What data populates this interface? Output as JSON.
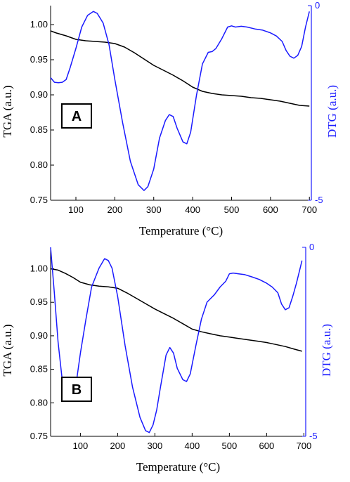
{
  "chart_data": [
    {
      "type": "line",
      "panel_label": "A",
      "xlabel": "Temperature (°C)",
      "ylabel_left": "TGA (a.u.)",
      "ylabel_right": "DTG (a.u.)",
      "xlim": [
        35,
        705
      ],
      "ylim_left": [
        0.75,
        1.027
      ],
      "ylim_right": [
        -5,
        0
      ],
      "xticks": [
        "100",
        "200",
        "300",
        "400",
        "500",
        "600",
        "700"
      ],
      "yticks_left": [
        "0.75",
        "0.80",
        "0.85",
        "0.90",
        "0.95",
        "1.00"
      ],
      "yticks_right": [
        "-5",
        "0"
      ],
      "colors": {
        "tga": "#000000",
        "dtg": "#1a1aff"
      },
      "series": [
        {
          "axis": "left",
          "x": [
            35,
            50,
            75,
            100,
            125,
            150,
            175,
            200,
            225,
            250,
            275,
            300,
            325,
            350,
            375,
            400,
            425,
            450,
            475,
            500,
            525,
            550,
            575,
            600,
            625,
            650,
            675,
            700
          ],
          "values": [
            0.991,
            0.988,
            0.984,
            0.979,
            0.977,
            0.976,
            0.975,
            0.973,
            0.968,
            0.96,
            0.951,
            0.942,
            0.935,
            0.928,
            0.92,
            0.911,
            0.905,
            0.902,
            0.9,
            0.899,
            0.898,
            0.896,
            0.895,
            0.893,
            0.891,
            0.888,
            0.885,
            0.884
          ]
        },
        {
          "axis": "right",
          "x": [
            35,
            45,
            55,
            65,
            75,
            85,
            100,
            115,
            130,
            145,
            155,
            170,
            185,
            200,
            220,
            240,
            260,
            275,
            285,
            300,
            315,
            330,
            340,
            350,
            360,
            375,
            385,
            395,
            410,
            425,
            440,
            450,
            460,
            475,
            490,
            500,
            510,
            525,
            540,
            560,
            580,
            600,
            615,
            630,
            640,
            650,
            660,
            670,
            680,
            690,
            700
          ],
          "values": [
            -1.85,
            -1.97,
            -1.98,
            -1.97,
            -1.9,
            -1.6,
            -1.1,
            -0.55,
            -0.25,
            -0.15,
            -0.2,
            -0.45,
            -1.0,
            -1.9,
            -3.0,
            -4.0,
            -4.6,
            -4.75,
            -4.65,
            -4.2,
            -3.4,
            -2.95,
            -2.8,
            -2.85,
            -3.15,
            -3.5,
            -3.55,
            -3.25,
            -2.3,
            -1.5,
            -1.2,
            -1.18,
            -1.1,
            -0.85,
            -0.55,
            -0.52,
            -0.55,
            -0.53,
            -0.55,
            -0.6,
            -0.63,
            -0.7,
            -0.78,
            -0.92,
            -1.15,
            -1.3,
            -1.35,
            -1.28,
            -1.05,
            -0.55,
            -0.15
          ]
        }
      ]
    },
    {
      "type": "line",
      "panel_label": "B",
      "xlabel": "Temperature (°C)",
      "ylabel_left": "TGA (a.u.)",
      "ylabel_right": "DTG (a.u.)",
      "xlim": [
        20,
        705
      ],
      "ylim_left": [
        0.75,
        1.032
      ],
      "ylim_right": [
        -5,
        0
      ],
      "xticks": [
        "100",
        "200",
        "300",
        "400",
        "500",
        "600",
        "700"
      ],
      "yticks_left": [
        "0.75",
        "0.80",
        "0.85",
        "0.90",
        "0.95",
        "1.00"
      ],
      "yticks_right": [
        "-5",
        "0"
      ],
      "colors": {
        "tga": "#000000",
        "dtg": "#1a1aff"
      },
      "series": [
        {
          "axis": "left",
          "x": [
            20,
            40,
            60,
            80,
            100,
            125,
            150,
            175,
            200,
            225,
            250,
            275,
            300,
            325,
            350,
            375,
            400,
            425,
            450,
            475,
            500,
            525,
            550,
            575,
            600,
            625,
            650,
            675,
            695
          ],
          "values": [
            1.0,
            0.998,
            0.993,
            0.987,
            0.98,
            0.976,
            0.974,
            0.973,
            0.971,
            0.964,
            0.956,
            0.948,
            0.94,
            0.933,
            0.926,
            0.918,
            0.91,
            0.906,
            0.903,
            0.9,
            0.898,
            0.896,
            0.894,
            0.892,
            0.89,
            0.887,
            0.884,
            0.88,
            0.877
          ]
        },
        {
          "axis": "right",
          "x": [
            20,
            30,
            40,
            50,
            60,
            70,
            80,
            90,
            100,
            115,
            130,
            150,
            165,
            175,
            185,
            200,
            220,
            240,
            260,
            275,
            285,
            295,
            305,
            315,
            330,
            340,
            350,
            360,
            375,
            385,
            395,
            410,
            425,
            440,
            450,
            460,
            475,
            490,
            500,
            510,
            525,
            540,
            560,
            580,
            600,
            615,
            630,
            640,
            650,
            660,
            670,
            680,
            690,
            695
          ],
          "values": [
            0.0,
            -1.2,
            -2.5,
            -3.4,
            -3.9,
            -4.0,
            -3.95,
            -3.5,
            -2.8,
            -1.9,
            -1.05,
            -0.55,
            -0.3,
            -0.35,
            -0.55,
            -1.3,
            -2.6,
            -3.7,
            -4.5,
            -4.85,
            -4.9,
            -4.7,
            -4.3,
            -3.7,
            -2.85,
            -2.65,
            -2.8,
            -3.2,
            -3.5,
            -3.55,
            -3.35,
            -2.6,
            -1.9,
            -1.45,
            -1.35,
            -1.25,
            -1.05,
            -0.9,
            -0.7,
            -0.68,
            -0.7,
            -0.72,
            -0.78,
            -0.85,
            -0.95,
            -1.05,
            -1.2,
            -1.5,
            -1.65,
            -1.6,
            -1.3,
            -0.95,
            -0.55,
            -0.35
          ]
        }
      ]
    }
  ]
}
